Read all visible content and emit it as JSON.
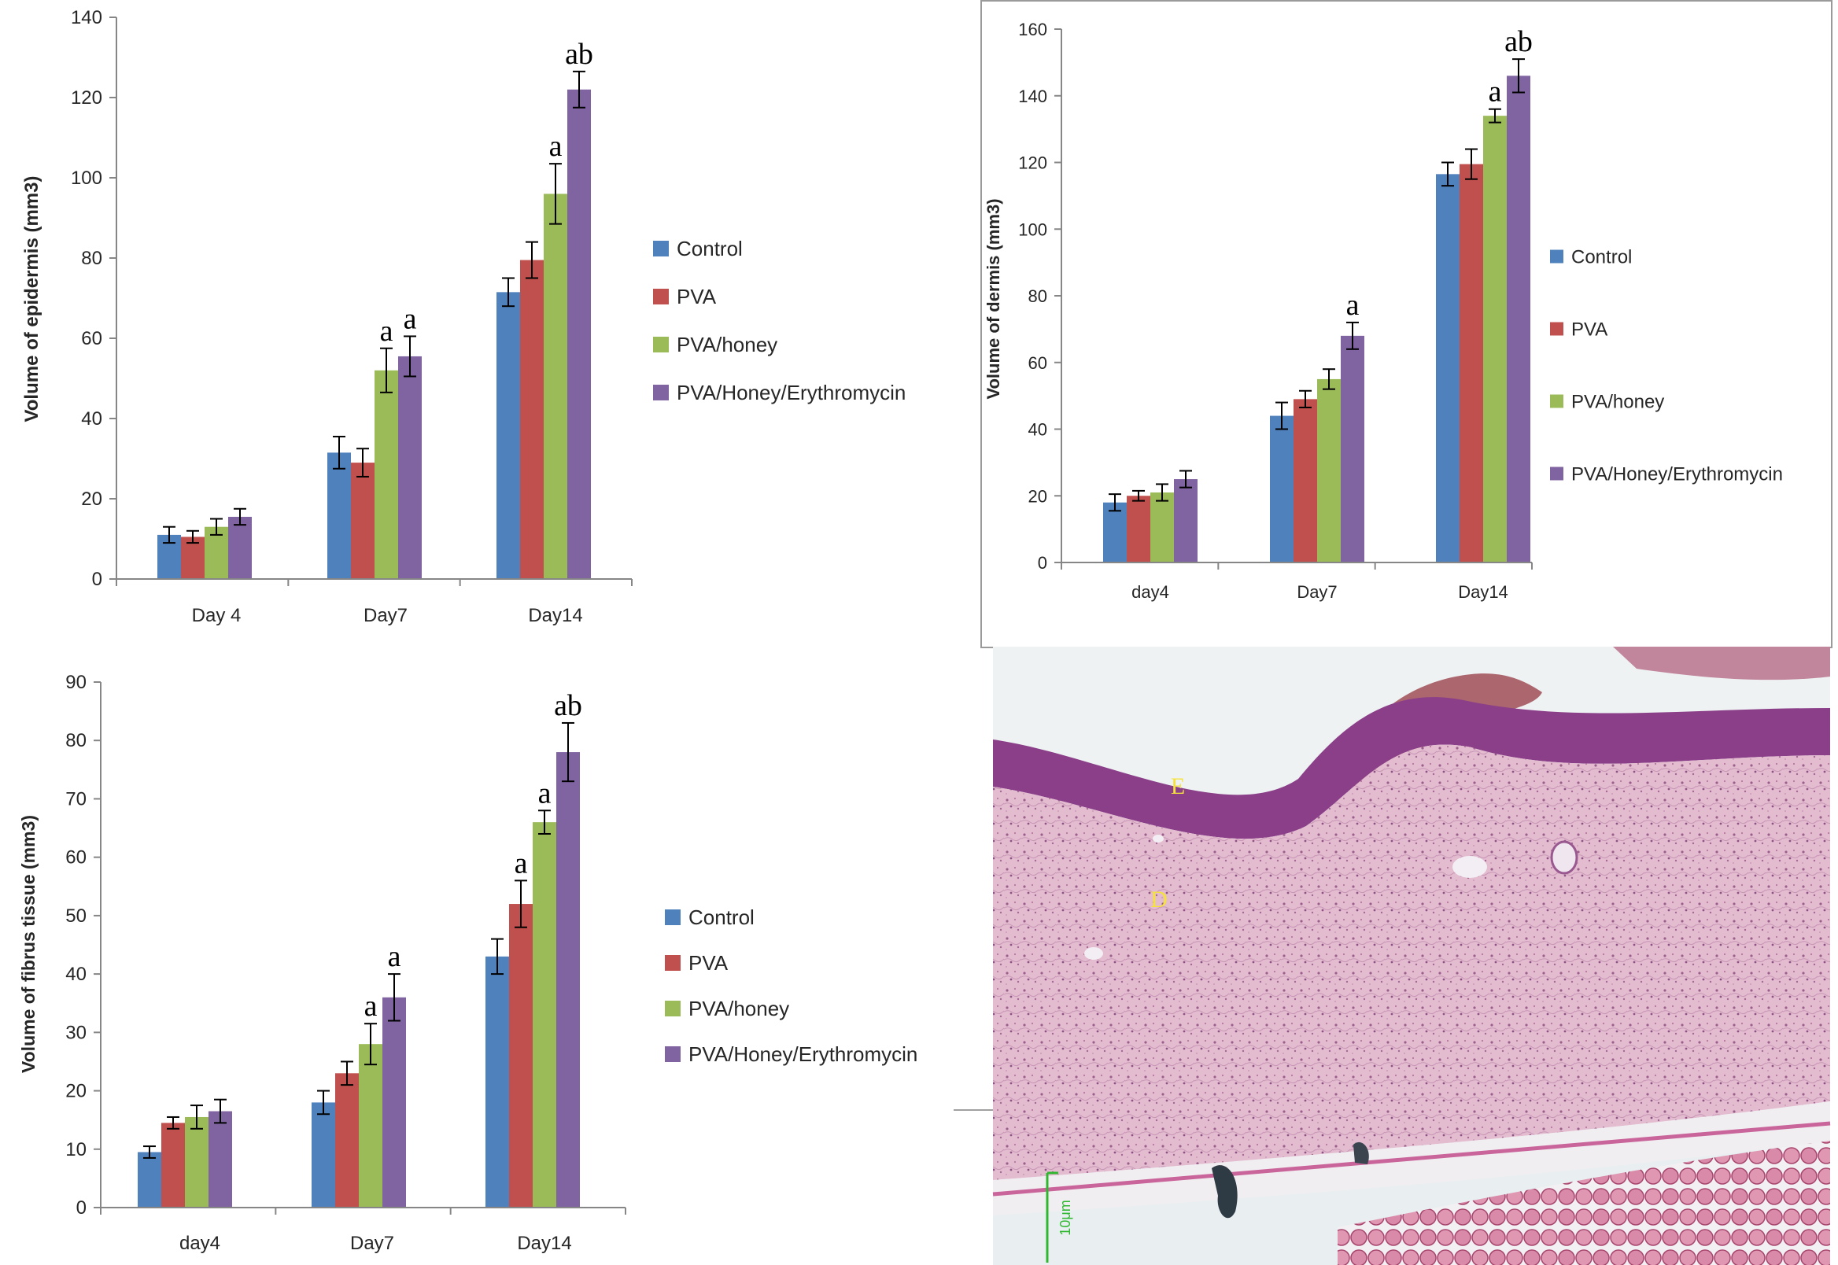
{
  "colors": {
    "Control": "#4f81bd",
    "PVA": "#c0504d",
    "PVA/honey": "#9bbb59",
    "PVA/Honey/Erythromycin": "#8064a2",
    "axis": "#868686",
    "text": "#262626"
  },
  "chart_data": [
    {
      "id": "epidermis",
      "type": "bar",
      "title": "",
      "xlabel": "",
      "ylabel": "Volume of epidermis (mm3)",
      "categories": [
        "Day 4",
        "Day7",
        "Day14"
      ],
      "ylim": [
        0,
        140
      ],
      "yticks": [
        "0",
        "20",
        "40",
        "60",
        "80",
        "100",
        "120",
        "140"
      ],
      "legend_position": "right",
      "series": [
        {
          "name": "Control",
          "values": [
            11,
            31.5,
            71.5
          ],
          "errors": [
            2,
            4,
            3.5
          ]
        },
        {
          "name": "PVA",
          "values": [
            10.5,
            29,
            79.5
          ],
          "errors": [
            1.5,
            3.5,
            4.5
          ]
        },
        {
          "name": "PVA/honey",
          "values": [
            13,
            52,
            96
          ],
          "errors": [
            2,
            5.5,
            7.5
          ]
        },
        {
          "name": "PVA/Honey/Erythromycin",
          "values": [
            15.5,
            55.5,
            122
          ],
          "errors": [
            2,
            5,
            4.5
          ]
        }
      ],
      "annotations": [
        {
          "category": 1,
          "series": 2,
          "text": "a"
        },
        {
          "category": 1,
          "series": 3,
          "text": "a"
        },
        {
          "category": 2,
          "series": 2,
          "text": "a"
        },
        {
          "category": 2,
          "series": 3,
          "text": "ab"
        }
      ]
    },
    {
      "id": "dermis",
      "type": "bar",
      "title": "",
      "xlabel": "",
      "ylabel": "Volume of dermis (mm3)",
      "categories": [
        "day4",
        "Day7",
        "Day14"
      ],
      "ylim": [
        0,
        160
      ],
      "yticks": [
        "0",
        "20",
        "40",
        "60",
        "80",
        "100",
        "120",
        "140",
        "160"
      ],
      "legend_position": "right",
      "series": [
        {
          "name": "Control",
          "values": [
            18,
            44,
            116.5
          ],
          "errors": [
            2.5,
            4,
            3.5
          ]
        },
        {
          "name": "PVA",
          "values": [
            20,
            49,
            119.5
          ],
          "errors": [
            1.5,
            2.5,
            4.5
          ]
        },
        {
          "name": "PVA/honey",
          "values": [
            21,
            55,
            134
          ],
          "errors": [
            2.5,
            3,
            2
          ]
        },
        {
          "name": "PVA/Honey/Erythromycin",
          "values": [
            25,
            68,
            146
          ],
          "errors": [
            2.5,
            4,
            5
          ]
        }
      ],
      "annotations": [
        {
          "category": 1,
          "series": 3,
          "text": "a"
        },
        {
          "category": 2,
          "series": 2,
          "text": "a"
        },
        {
          "category": 2,
          "series": 3,
          "text": "ab"
        }
      ]
    },
    {
      "id": "fibrous",
      "type": "bar",
      "title": "",
      "xlabel": "",
      "ylabel": "Volume of fibrus tissue (mm3)",
      "categories": [
        "day4",
        "Day7",
        "Day14"
      ],
      "ylim": [
        0,
        90
      ],
      "yticks": [
        "0",
        "10",
        "20",
        "30",
        "40",
        "50",
        "60",
        "70",
        "80",
        "90"
      ],
      "legend_position": "right",
      "series": [
        {
          "name": "Control",
          "values": [
            9.5,
            18,
            43
          ],
          "errors": [
            1,
            2,
            3
          ]
        },
        {
          "name": "PVA",
          "values": [
            14.5,
            23,
            52
          ],
          "errors": [
            1,
            2,
            4
          ]
        },
        {
          "name": "PVA/honey",
          "values": [
            15.5,
            28,
            66
          ],
          "errors": [
            2,
            3.5,
            2
          ]
        },
        {
          "name": "PVA/Honey/Erythromycin",
          "values": [
            16.5,
            36,
            78
          ],
          "errors": [
            2,
            4,
            5
          ]
        }
      ],
      "annotations": [
        {
          "category": 1,
          "series": 2,
          "text": "a"
        },
        {
          "category": 1,
          "series": 3,
          "text": "a"
        },
        {
          "category": 2,
          "series": 1,
          "text": "a"
        },
        {
          "category": 2,
          "series": 2,
          "text": "a"
        },
        {
          "category": 2,
          "series": 3,
          "text": "ab"
        }
      ]
    }
  ],
  "micrograph": {
    "label_epidermis": "E",
    "label_dermis": "D",
    "scale_bar_text": "10μm"
  }
}
